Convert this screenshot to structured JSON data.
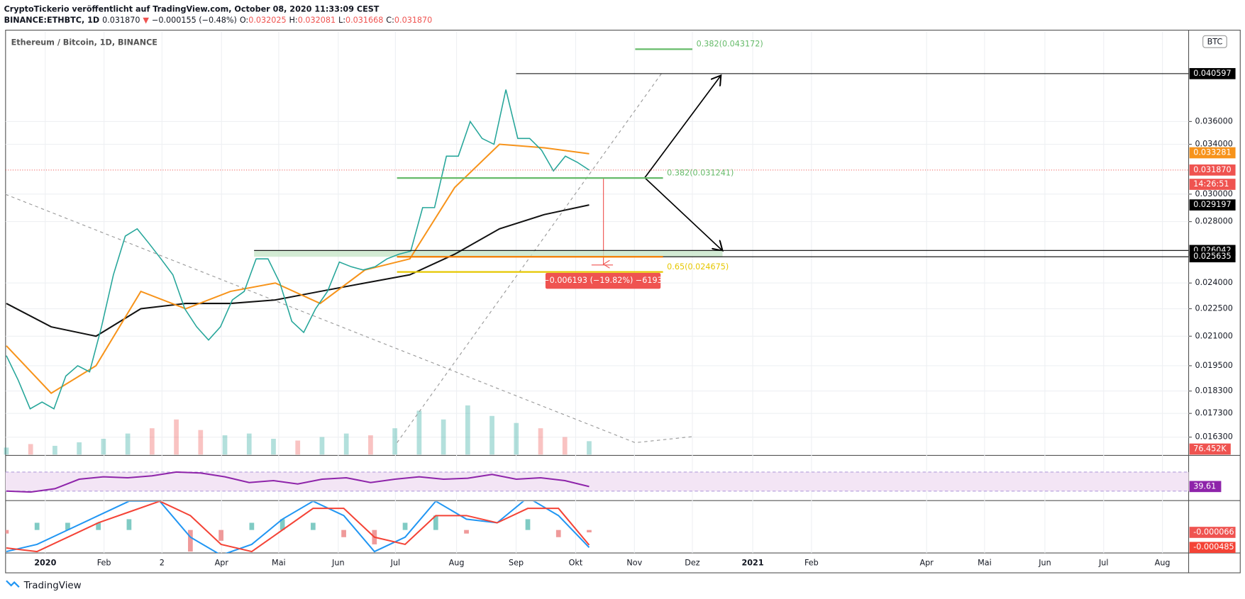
{
  "header": {
    "published": "CryptoTickerio veröffentlicht auf TradingView.com, October 08, 2020 11:33:09 CEST",
    "symbol": "BINANCE:ETHBTC, 1D",
    "last": "0.031870",
    "arrow": "▼",
    "change": "−0.000155 (−0.48%)",
    "o_label": "O:",
    "open": "0.032025",
    "h_label": "H:",
    "high": "0.032081",
    "l_label": "L:",
    "low": "0.031668",
    "c_label": "C:",
    "close": "0.031870"
  },
  "chart": {
    "legend": "Ethereum / Bitcoin, 1D, BINANCE",
    "currency": "BTC",
    "log_scale": true,
    "ylim": [
      0.0156,
      0.0451
    ],
    "yticks": [
      {
        "value": 0.036,
        "label": "0.036000"
      },
      {
        "value": 0.034,
        "label": "0.034000"
      },
      {
        "value": 0.03,
        "label": "0.030000"
      },
      {
        "value": 0.028,
        "label": "0.028000"
      },
      {
        "value": 0.024,
        "label": "0.024000"
      },
      {
        "value": 0.0225,
        "label": "0.022500"
      },
      {
        "value": 0.021,
        "label": "0.021000"
      },
      {
        "value": 0.0195,
        "label": "0.019500"
      },
      {
        "value": 0.0183,
        "label": "0.018300"
      },
      {
        "value": 0.0173,
        "label": "0.017300"
      },
      {
        "value": 0.0163,
        "label": "0.016300"
      }
    ],
    "time_labels": [
      "2020",
      "Feb",
      "2",
      "Apr",
      "Mai",
      "Jun",
      "Jul",
      "Aug",
      "Sep",
      "Okt",
      "Nov",
      "Dez",
      "2021",
      "Feb",
      "Apr",
      "Mai",
      "Jun",
      "Jul",
      "Aug"
    ],
    "price": {
      "color": "#26a69a",
      "values": [
        0.02,
        0.0188,
        0.0175,
        0.0178,
        0.0175,
        0.019,
        0.0195,
        0.0192,
        0.0215,
        0.0245,
        0.027,
        0.0275,
        0.0265,
        0.0255,
        0.0245,
        0.0225,
        0.0215,
        0.0208,
        0.0215,
        0.023,
        0.0235,
        0.0255,
        0.0255,
        0.024,
        0.0218,
        0.0212,
        0.0225,
        0.0235,
        0.0253,
        0.025,
        0.0248,
        0.025,
        0.0255,
        0.0258,
        0.026,
        0.029,
        0.029,
        0.033,
        0.033,
        0.036,
        0.0345,
        0.034,
        0.039,
        0.0345,
        0.0345,
        0.0335,
        0.0318,
        0.033,
        0.0325,
        0.03187
      ]
    },
    "ma_fast": {
      "color": "#f7931a",
      "values": [
        0.0205,
        0.0182,
        0.0195,
        0.0235,
        0.0225,
        0.0235,
        0.024,
        0.0228,
        0.0248,
        0.0255,
        0.0305,
        0.034,
        0.0337,
        0.0332
      ]
    },
    "ma_slow": {
      "color": "#111111",
      "values": [
        0.0228,
        0.0215,
        0.021,
        0.0225,
        0.0228,
        0.0228,
        0.023,
        0.0235,
        0.024,
        0.0245,
        0.0258,
        0.0275,
        0.0285,
        0.029197
      ]
    },
    "levels": [
      {
        "value": 0.040597,
        "label": "0.040597",
        "color": "#000000"
      },
      {
        "value": 0.033281,
        "label": "0.033281",
        "color": "#f7931a"
      },
      {
        "value": 0.03187,
        "label": "0.031870",
        "color": "#ef5350"
      },
      {
        "value": 0.029197,
        "label": "0.029197",
        "color": "#000000"
      },
      {
        "value": 0.026042,
        "label": "0.026042",
        "color": "#000000"
      },
      {
        "value": 0.025635,
        "label": "0.025635",
        "color": "#000000"
      }
    ],
    "countdown": "14:26:51",
    "fib": [
      {
        "value": 0.043172,
        "label": "0.382(0.043172)",
        "color": "#66bb6a"
      },
      {
        "value": 0.031241,
        "label": "0.382(0.031241)",
        "color": "#66bb6a"
      },
      {
        "value": 0.024675,
        "label": "0.65(0.024675)",
        "color": "#e6c700"
      }
    ],
    "measure": "−0.006193 (−19.82%) −6193"
  },
  "volume": {
    "values": [
      40,
      60,
      50,
      70,
      90,
      120,
      150,
      200,
      140,
      110,
      120,
      90,
      80,
      100,
      120,
      110,
      150,
      250,
      200,
      280,
      220,
      180,
      150,
      100,
      76.452
    ],
    "value_labels": {
      "24": "76.452K"
    }
  },
  "rsi": {
    "color": "#8e24aa",
    "values": [
      30,
      28,
      35,
      55,
      60,
      58,
      62,
      70,
      68,
      60,
      48,
      52,
      45,
      55,
      58,
      48,
      55,
      60,
      55,
      57,
      65,
      55,
      58,
      52,
      39.61
    ],
    "value_labels": {
      "24": "39.61"
    }
  },
  "macd": {
    "macd": {
      "color": "#2196f3",
      "values": [
        -0.0006,
        -0.0004,
        0.0,
        0.0004,
        0.0008,
        0.0008,
        -0.0002,
        -0.0007,
        -0.0004,
        0.0003,
        0.0008,
        0.0004,
        -0.0006,
        -0.0002,
        0.0008,
        0.0003,
        0.0002,
        0.0009,
        0.0004,
        -0.000485
      ],
      "value_labels": {
        "19": "-0.000485"
      }
    },
    "signal": {
      "color": "#f44336",
      "values": [
        -0.0005,
        -0.0006,
        -0.0002,
        0.0002,
        0.0005,
        0.0008,
        0.0004,
        -0.0004,
        -0.0006,
        0.0,
        0.0006,
        0.0006,
        -0.0002,
        -0.0004,
        0.0004,
        0.0004,
        0.0002,
        0.0006,
        0.0006,
        -0.000419
      ]
    },
    "histogram_label": "-0.000066"
  },
  "footer": "TradingView"
}
